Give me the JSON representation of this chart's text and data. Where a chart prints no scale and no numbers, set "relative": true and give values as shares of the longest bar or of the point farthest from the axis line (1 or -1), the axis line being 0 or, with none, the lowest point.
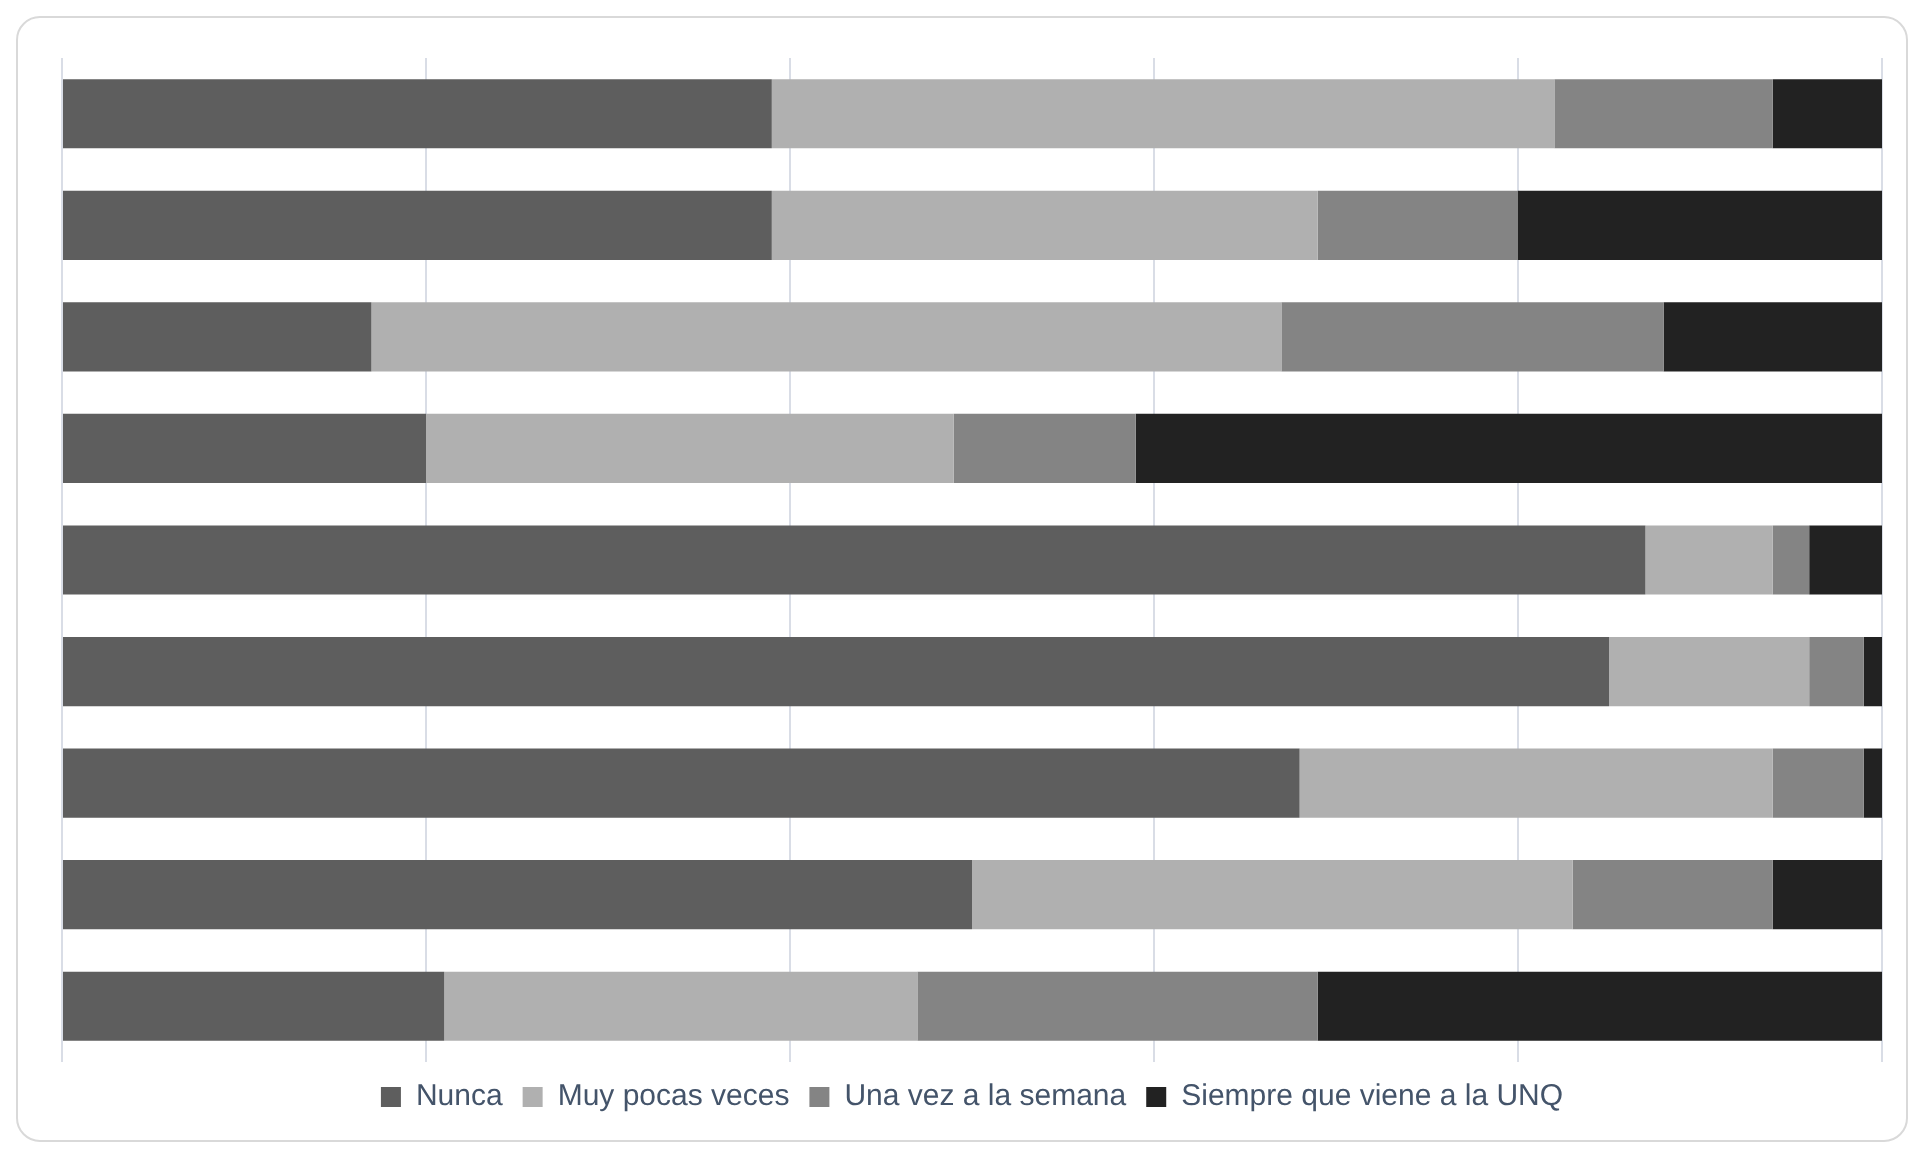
{
  "chart_data": {
    "type": "bar",
    "orientation": "horizontal",
    "stacked": true,
    "relative": true,
    "categories": [
      null,
      null,
      null,
      null,
      null,
      null,
      null,
      null,
      null
    ],
    "series": [
      {
        "name": "Nunca",
        "color": "#5e5e5e",
        "values": [
          0.39,
          0.39,
          0.17,
          0.2,
          0.87,
          0.85,
          0.68,
          0.5,
          0.21
        ]
      },
      {
        "name": "Muy pocas veces",
        "color": "#b0b0b0",
        "values": [
          0.43,
          0.3,
          0.5,
          0.29,
          0.07,
          0.11,
          0.26,
          0.33,
          0.26
        ]
      },
      {
        "name": "Una vez a la semana",
        "color": "#848484",
        "values": [
          0.12,
          0.11,
          0.21,
          0.1,
          0.02,
          0.03,
          0.05,
          0.11,
          0.22
        ]
      },
      {
        "name": "Siempre que viene a la UNQ",
        "color": "#222222",
        "values": [
          0.06,
          0.2,
          0.12,
          0.41,
          0.04,
          0.01,
          0.01,
          0.06,
          0.31
        ]
      }
    ],
    "grid": "x",
    "legend": "bottom"
  }
}
